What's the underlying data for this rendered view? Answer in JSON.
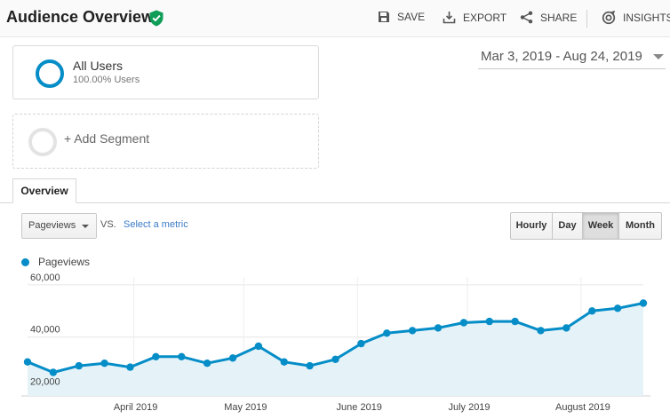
{
  "header": {
    "title": "Audience Overview",
    "toolbar": {
      "save": "SAVE",
      "export": "EXPORT",
      "share": "SHARE",
      "insights": "INSIGHTS"
    }
  },
  "segments": {
    "active": {
      "name": "All Users",
      "percentage": "100.00% Users",
      "color": "#058dc7"
    },
    "add_label": "+ Add Segment"
  },
  "date_range": "Mar 3, 2019 - Aug 24, 2019",
  "tabs": [
    {
      "label": "Overview",
      "active": true
    }
  ],
  "controls": {
    "metric": "Pageviews",
    "vs": "VS.",
    "select_metric": "Select a metric",
    "periods": [
      {
        "label": "Hourly",
        "active": false
      },
      {
        "label": "Day",
        "active": false
      },
      {
        "label": "Week",
        "active": true
      },
      {
        "label": "Month",
        "active": false
      }
    ]
  },
  "legend": {
    "label": "Pageviews"
  },
  "chart_data": {
    "type": "area",
    "series": [
      {
        "name": "Pageviews",
        "color": "#058dc7",
        "x": [
          "2019-03-03",
          "2019-03-10",
          "2019-03-17",
          "2019-03-24",
          "2019-03-31",
          "2019-04-07",
          "2019-04-14",
          "2019-04-21",
          "2019-04-28",
          "2019-05-05",
          "2019-05-12",
          "2019-05-19",
          "2019-05-26",
          "2019-06-02",
          "2019-06-09",
          "2019-06-16",
          "2019-06-23",
          "2019-06-30",
          "2019-07-07",
          "2019-07-14",
          "2019-07-21",
          "2019-07-28",
          "2019-08-04",
          "2019-08-11",
          "2019-08-18"
        ],
        "values": [
          30500,
          26500,
          29000,
          30000,
          28500,
          32500,
          32500,
          30000,
          32000,
          36500,
          30500,
          29000,
          31500,
          37500,
          41500,
          42500,
          43500,
          45500,
          46000,
          46000,
          42500,
          43500,
          50000,
          51000,
          53000
        ]
      }
    ],
    "y_ticks": [
      {
        "value": 20000,
        "label": "20,000"
      },
      {
        "value": 40000,
        "label": "40,000"
      },
      {
        "value": 60000,
        "label": "60,000"
      }
    ],
    "x_ticks": [
      {
        "date": "2019-04-01",
        "label": "April 2019"
      },
      {
        "date": "2019-05-01",
        "label": "May 2019"
      },
      {
        "date": "2019-06-01",
        "label": "June 2019"
      },
      {
        "date": "2019-07-01",
        "label": "July 2019"
      },
      {
        "date": "2019-08-01",
        "label": "August 2019"
      }
    ],
    "ylim": [
      17500,
      63000
    ],
    "grid": true,
    "fill_color": "#e5f3f9"
  }
}
